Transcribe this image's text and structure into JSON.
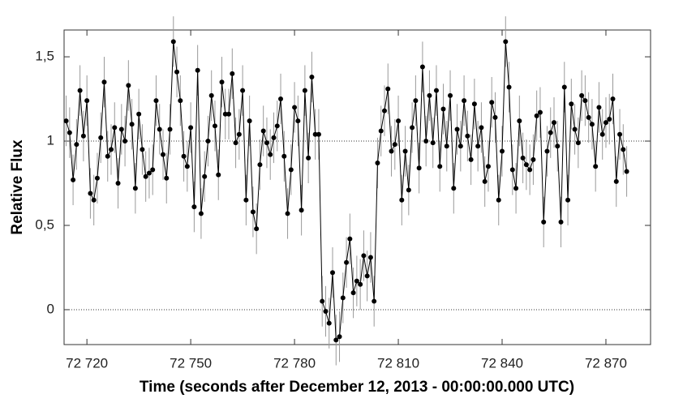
{
  "chart_data": {
    "type": "scatter",
    "xlabel": "Time (seconds after December 12, 2013 - 00:00:00.000 UTC)",
    "ylabel": "Relative Flux",
    "xlim": [
      72713.4,
      72882.9
    ],
    "ylim": [
      -0.207,
      1.659
    ],
    "xticks": [
      {
        "value": 72720,
        "label": "72 720"
      },
      {
        "value": 72750,
        "label": "72 750"
      },
      {
        "value": 72780,
        "label": "72 780"
      },
      {
        "value": 72810,
        "label": "72 810"
      },
      {
        "value": 72840,
        "label": "72 840"
      },
      {
        "value": 72870,
        "label": "72 870"
      }
    ],
    "yticks": [
      0,
      {
        "value": 0.5,
        "label": "0,5"
      },
      1,
      {
        "value": 1.5,
        "label": "1,5"
      }
    ],
    "hlines": [
      0,
      1
    ],
    "x": [
      72714,
      72715,
      72716,
      72717,
      72718,
      72719,
      72720,
      72721,
      72722,
      72723,
      72724,
      72725,
      72726,
      72727,
      72728,
      72729,
      72730,
      72731,
      72732,
      72733,
      72734,
      72735,
      72736,
      72737,
      72738,
      72739,
      72740,
      72741,
      72742,
      72743,
      72744,
      72745,
      72746,
      72747,
      72748,
      72749,
      72750,
      72751,
      72752,
      72753,
      72754,
      72755,
      72756,
      72757,
      72758,
      72759,
      72760,
      72761,
      72762,
      72763,
      72764,
      72765,
      72766,
      72767,
      72768,
      72769,
      72770,
      72771,
      72772,
      72773,
      72774,
      72775,
      72776,
      72777,
      72778,
      72779,
      72780,
      72781,
      72782,
      72783,
      72784,
      72785,
      72786,
      72787,
      72788,
      72789,
      72790,
      72791,
      72792,
      72793,
      72794,
      72795,
      72796,
      72797,
      72798,
      72799,
      72800,
      72801,
      72802,
      72803,
      72804,
      72805,
      72806,
      72807,
      72808,
      72809,
      72810,
      72811,
      72812,
      72813,
      72814,
      72815,
      72816,
      72817,
      72818,
      72819,
      72820,
      72821,
      72822,
      72823,
      72824,
      72825,
      72826,
      72827,
      72828,
      72829,
      72830,
      72831,
      72832,
      72833,
      72834,
      72835,
      72836,
      72837,
      72838,
      72839,
      72840,
      72841,
      72842,
      72843,
      72844,
      72845,
      72846,
      72847,
      72848,
      72849,
      72850,
      72851,
      72852,
      72853,
      72854,
      72855,
      72856,
      72857,
      72858,
      72859,
      72860,
      72861,
      72862,
      72863,
      72864,
      72865,
      72866,
      72867,
      72868,
      72869,
      72870,
      72871,
      72872,
      72873,
      72874,
      72875,
      72876
    ],
    "series": [
      {
        "color": "#000000",
        "yerr": 0.15,
        "values": [
          1.12,
          1.05,
          0.77,
          0.98,
          1.3,
          1.03,
          1.24,
          0.69,
          0.65,
          0.78,
          1.02,
          1.35,
          0.91,
          0.95,
          1.08,
          0.75,
          1.07,
          1.0,
          1.33,
          1.1,
          0.72,
          1.16,
          0.95,
          0.79,
          0.81,
          0.83,
          1.24,
          1.07,
          0.92,
          0.78,
          1.07,
          1.59,
          1.41,
          1.24,
          0.91,
          0.85,
          1.08,
          0.61,
          1.42,
          0.57,
          0.79,
          1.0,
          1.27,
          1.09,
          0.8,
          1.35,
          1.16,
          1.16,
          1.4,
          0.99,
          1.04,
          1.3,
          0.65,
          1.12,
          0.58,
          0.48,
          0.86,
          1.06,
          0.99,
          0.92,
          1.02,
          1.09,
          1.25,
          0.91,
          0.57,
          0.83,
          1.2,
          1.12,
          0.59,
          1.3,
          0.9,
          1.38,
          1.04,
          1.04,
          0.05,
          -0.01,
          -0.08,
          0.22,
          -0.18,
          -0.16,
          0.07,
          0.28,
          0.42,
          0.1,
          0.17,
          0.15,
          0.32,
          0.2,
          0.31,
          0.05,
          0.87,
          1.06,
          1.18,
          1.31,
          0.94,
          0.98,
          1.12,
          0.65,
          0.94,
          0.71,
          1.08,
          1.24,
          0.84,
          1.44,
          1.0,
          1.27,
          0.99,
          1.3,
          0.85,
          1.19,
          0.97,
          1.27,
          0.72,
          1.07,
          0.97,
          1.24,
          1.03,
          0.89,
          1.22,
          0.97,
          1.08,
          0.76,
          0.85,
          1.23,
          1.14,
          0.65,
          0.94,
          1.59,
          1.32,
          0.83,
          0.72,
          1.12,
          0.9,
          0.86,
          0.83,
          0.89,
          1.15,
          1.17,
          0.52,
          0.94,
          1.05,
          1.11,
          0.97,
          0.52,
          1.32,
          0.65,
          1.22,
          1.07,
          0.99,
          1.27,
          1.24,
          1.14,
          1.1,
          0.85,
          1.2,
          1.04,
          1.11,
          1.13,
          1.25,
          0.76,
          1.04,
          0.95,
          0.82
        ]
      }
    ]
  }
}
